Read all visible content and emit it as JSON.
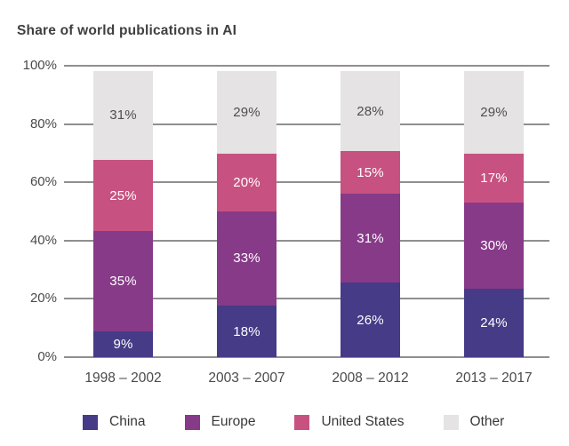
{
  "chart_data": {
    "type": "bar",
    "stacked": true,
    "title": "Share of world publications in AI",
    "categories": [
      "1998 – 2002",
      "2003 – 2007",
      "2008 – 2012",
      "2013 – 2017"
    ],
    "series": [
      {
        "name": "China",
        "color": "#453b87",
        "label_color": "#ffffff",
        "values": [
          9,
          18,
          26,
          24
        ]
      },
      {
        "name": "Europe",
        "color": "#873a88",
        "label_color": "#ffffff",
        "values": [
          35,
          33,
          31,
          30
        ]
      },
      {
        "name": "United States",
        "color": "#c75281",
        "label_color": "#ffffff",
        "values": [
          25,
          20,
          15,
          17
        ]
      },
      {
        "name": "Other",
        "color": "#e5e3e3",
        "label_color": "#4f4f4f",
        "values": [
          31,
          29,
          28,
          29
        ]
      }
    ],
    "value_suffix": "%",
    "y_axis": {
      "min": 0,
      "max": 100,
      "ticks": [
        "0%",
        "20%",
        "40%",
        "60%",
        "80%",
        "100%"
      ]
    },
    "grid": true,
    "legend_position": "bottom",
    "colors": {
      "gridline": "#8f8f8f",
      "axis_text": "#4a4a4a",
      "title_text": "#3f3f3f",
      "background": "#ffffff"
    }
  }
}
